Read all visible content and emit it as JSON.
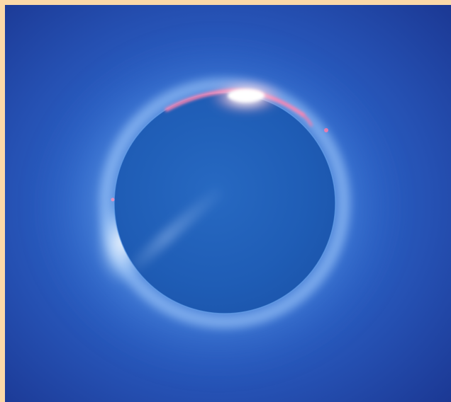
{
  "image": {
    "subject": "total-solar-eclipse",
    "colors": {
      "frame": "#fbd9a8",
      "sky_outer": "#1e3a96",
      "sky_mid": "#2a5fc4",
      "corona_glow": "#6fa6ee",
      "moon_disk": "#1f5fb8",
      "moon_edge": "#2d6fcb",
      "diamond_ring": "#ffffff",
      "chromosphere": "#ff7aa8"
    }
  }
}
